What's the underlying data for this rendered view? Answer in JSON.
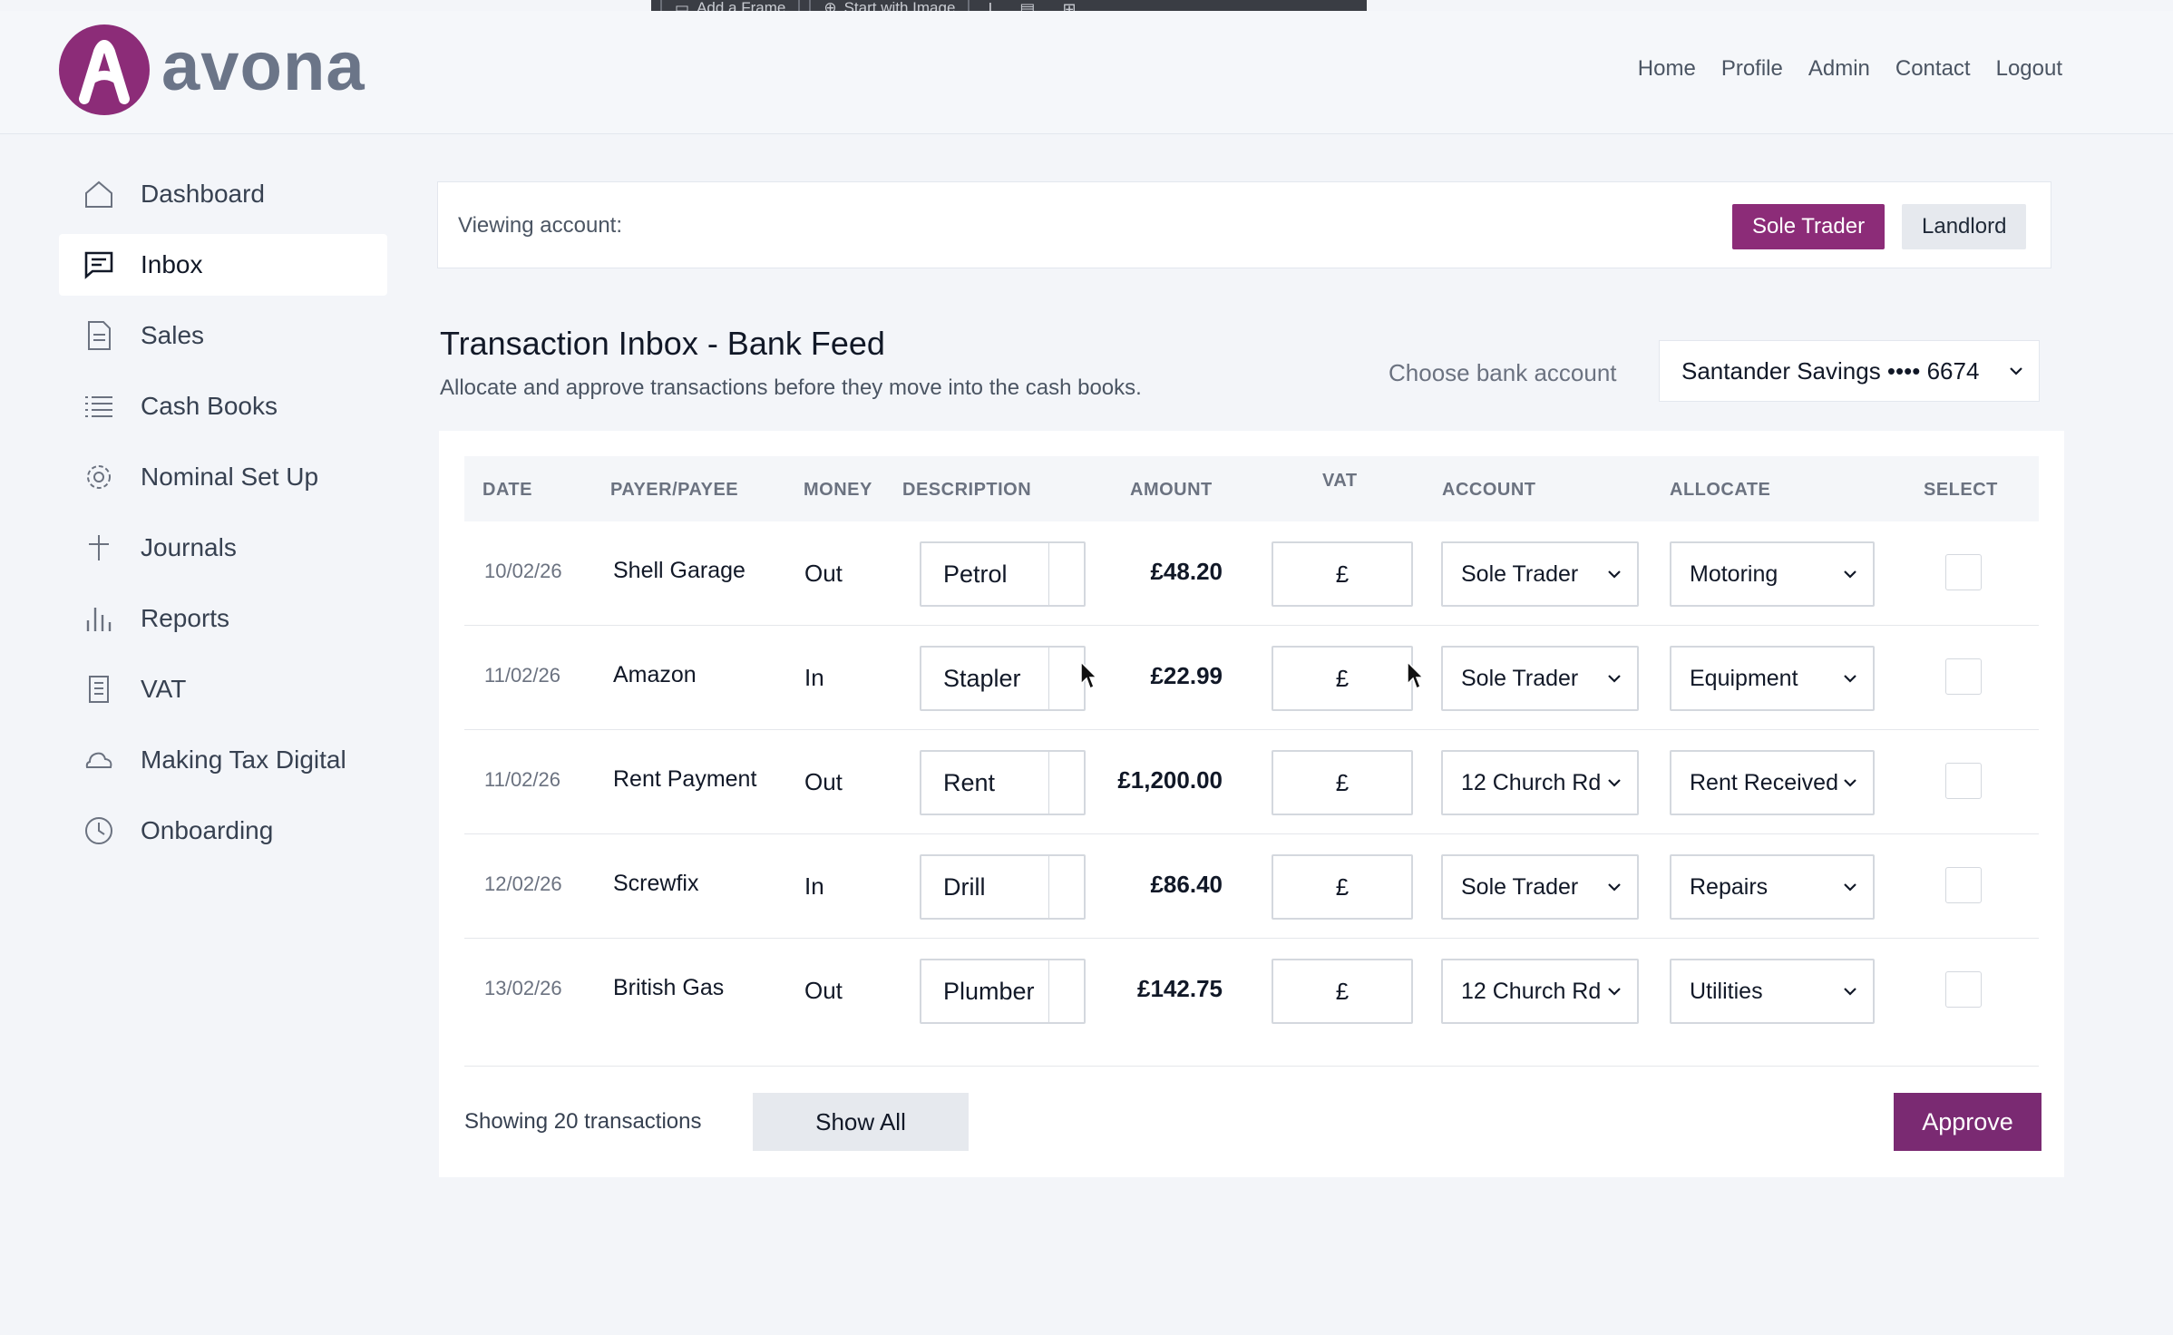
{
  "toolbar": {
    "btn1": "Add a Frame",
    "btn2": "Start with Image"
  },
  "brand": {
    "name": "avona",
    "accent_color": "#8c2c78",
    "approve_color": "#7a2a72"
  },
  "topnav": [
    "Home",
    "Profile",
    "Admin",
    "Contact",
    "Logout"
  ],
  "sidebar": {
    "active": "Inbox",
    "items": [
      {
        "label": "Dashboard",
        "icon": "home-icon"
      },
      {
        "label": "Inbox",
        "icon": "message-icon"
      },
      {
        "label": "Sales",
        "icon": "document-icon"
      },
      {
        "label": "Cash Books",
        "icon": "list-icon"
      },
      {
        "label": "Nominal Set Up",
        "icon": "gear-icon"
      },
      {
        "label": "Journals",
        "icon": "plus-icon"
      },
      {
        "label": "Reports",
        "icon": "bar-chart-icon"
      },
      {
        "label": "VAT",
        "icon": "receipt-icon"
      },
      {
        "label": "Making Tax Digital",
        "icon": "cloud-icon"
      },
      {
        "label": "Onboarding",
        "icon": "clock-icon"
      }
    ]
  },
  "viewing": {
    "label": "Viewing account:",
    "accounts": [
      "Sole Trader",
      "Landlord"
    ],
    "selected": "Sole Trader"
  },
  "main": {
    "title": "Transaction Inbox - Bank Feed",
    "subtitle": "Allocate and approve transactions before they move into the cash books.",
    "choose_bank_label": "Choose bank account",
    "bank_account": "Santander Savings •••• 6674"
  },
  "table": {
    "headers": {
      "date": "DATE",
      "payee": "PAYER/PAYEE",
      "money": "MONEY",
      "description": "DESCRIPTION",
      "amount": "AMOUNT",
      "vat": "VAT",
      "account": "ACCOUNT",
      "allocate": "ALLOCATE",
      "select": "SELECT"
    },
    "rows": [
      {
        "date": "10/02/26",
        "payee": "Shell Garage",
        "money": "Out",
        "description": "Petrol",
        "amount": "£48.20",
        "vat": "£",
        "account": "Sole Trader",
        "allocate": "Motoring",
        "selected": false
      },
      {
        "date": "11/02/26",
        "payee": "Amazon",
        "money": "In",
        "description": "Stapler",
        "amount": "£22.99",
        "vat": "£",
        "account": "Sole Trader",
        "allocate": "Equipment",
        "selected": false
      },
      {
        "date": "11/02/26",
        "payee": "Rent Payment",
        "money": "Out",
        "description": "Rent",
        "amount": "£1,200.00",
        "vat": "£",
        "account": "12 Church Rd",
        "allocate": "Rent Received",
        "selected": false
      },
      {
        "date": "12/02/26",
        "payee": "Screwfix",
        "money": "In",
        "description": "Drill",
        "amount": "£86.40",
        "vat": "£",
        "account": "Sole Trader",
        "allocate": "Repairs",
        "selected": false
      },
      {
        "date": "13/02/26",
        "payee": "British Gas",
        "money": "Out",
        "description": "Plumber",
        "amount": "£142.75",
        "vat": "£",
        "account": "12 Church Rd",
        "allocate": "Utilities",
        "selected": false
      }
    ]
  },
  "footer": {
    "showing": "Showing 20 transactions",
    "show_all": "Show All",
    "approve": "Approve"
  }
}
